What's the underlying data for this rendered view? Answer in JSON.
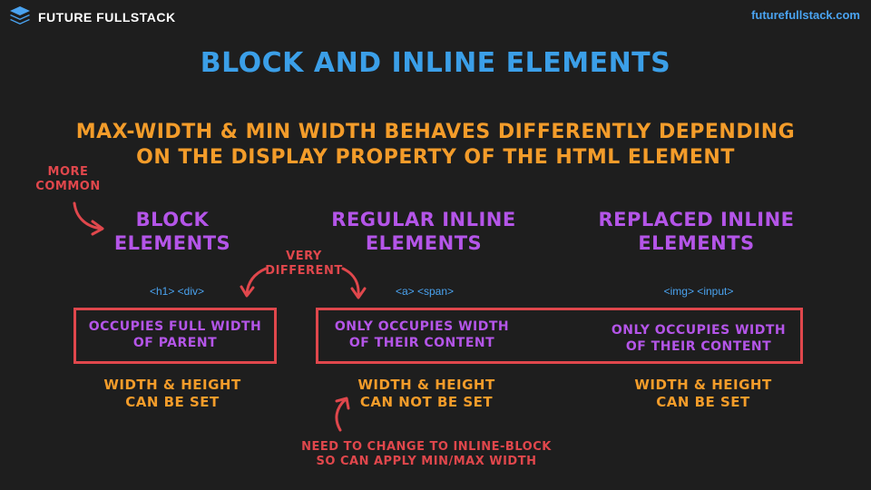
{
  "header": {
    "brand_name": "FUTURE FULLSTACK",
    "site_url": "futurefullstack.com",
    "logo_icon": "stacked-layers-icon"
  },
  "title": "BLOCK AND INLINE ELEMENTS",
  "subtitle": {
    "line1": "MAX-WIDTH & MIN WIDTH BEHAVES DIFFERENTLY DEPENDING",
    "line2": "ON THE DISPLAY PROPERTY OF THE HTML ELEMENT"
  },
  "notes": {
    "more_common": [
      "MORE",
      "COMMON"
    ],
    "very_different": [
      "VERY",
      "DIFFERENT"
    ],
    "inline_block": [
      "NEED TO CHANGE TO INLINE-BLOCK",
      "SO CAN APPLY MIN/MAX WIDTH"
    ]
  },
  "columns": [
    {
      "heading": [
        "BLOCK",
        "ELEMENTS"
      ],
      "tags": "<h1> <div>",
      "occupies": [
        "OCCUPIES FULL WIDTH",
        "OF PARENT"
      ],
      "size": [
        "WIDTH & HEIGHT",
        "CAN BE SET"
      ]
    },
    {
      "heading": [
        "REGULAR INLINE",
        "ELEMENTS"
      ],
      "tags": "<a> <span>",
      "occupies": [
        "ONLY OCCUPIES WIDTH",
        "OF THEIR CONTENT"
      ],
      "size": [
        "WIDTH & HEIGHT",
        "CAN NOT BE SET"
      ]
    },
    {
      "heading": [
        "REPLACED INLINE",
        "ELEMENTS"
      ],
      "tags": "<img> <input>",
      "occupies": [
        "ONLY OCCUPIES WIDTH",
        "OF THEIR CONTENT"
      ],
      "size": [
        "WIDTH & HEIGHT",
        "CAN BE SET"
      ]
    }
  ],
  "colors": {
    "background": "#1e1e1e",
    "title_blue": "#3b9fe8",
    "orange": "#f39c2a",
    "purple": "#b455e8",
    "red": "#e0474c",
    "tag_blue": "#4aa3f0"
  }
}
